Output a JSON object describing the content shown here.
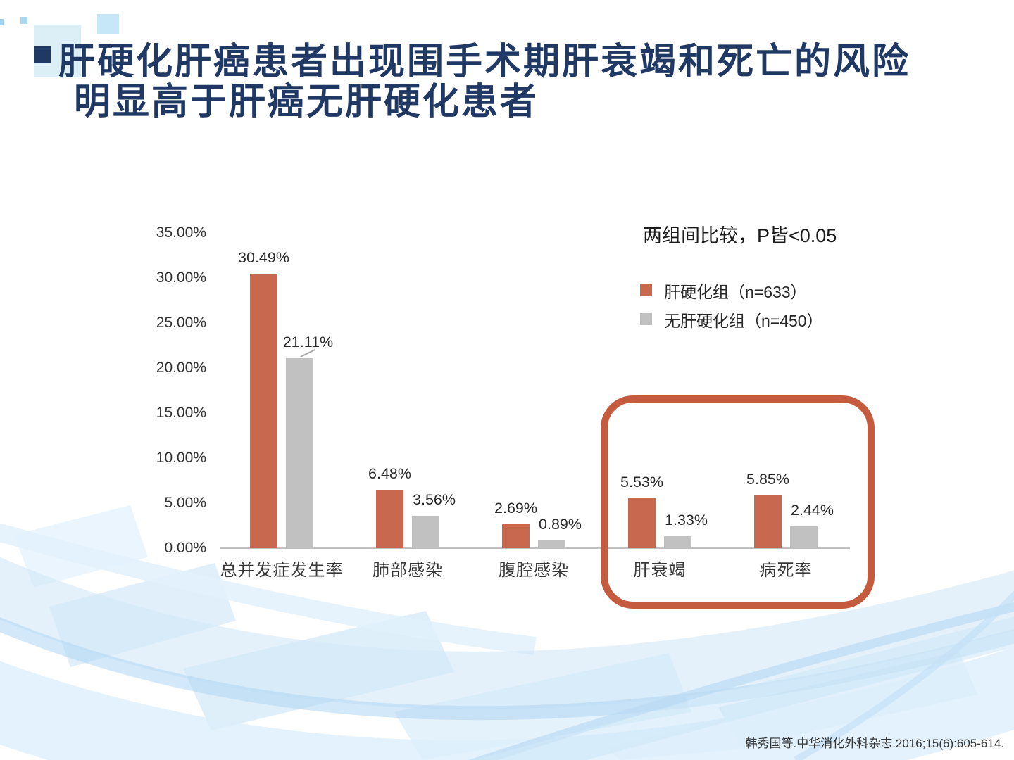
{
  "slide": {
    "title_line1": "肝硬化肝癌患者出现围手术期肝衰竭和死亡的风险",
    "title_line2": "明显高于肝癌无肝硬化患者",
    "citation": "韩秀国等.中华消化外科杂志.2016;15(6):605-614."
  },
  "annotation": {
    "p_value_note": "两组间比较，P皆<0.05"
  },
  "colors": {
    "title_navy": "#1F3864",
    "series_cirrhosis_orange": "#C8684E",
    "series_no_cirrhosis_gray": "#C1C1C1",
    "highlight_box_border": "#C55B3E",
    "axis_line_gray": "#BFBFBF"
  },
  "chart_data": {
    "type": "bar",
    "title": "",
    "xlabel": "",
    "ylabel": "",
    "categories": [
      "总并发症发生率",
      "肺部感染",
      "腹腔感染",
      "肝衰竭",
      "病死率"
    ],
    "series": [
      {
        "name": "肝硬化组（n=633）",
        "color": "#C8684E",
        "values": [
          30.49,
          6.48,
          2.69,
          5.53,
          5.85
        ],
        "labels": [
          "30.49%",
          "6.48%",
          "2.69%",
          "5.53%",
          "5.85%"
        ]
      },
      {
        "name": "无肝硬化组（n=450）",
        "color": "#C1C1C1",
        "values": [
          21.11,
          3.56,
          0.89,
          1.33,
          2.44
        ],
        "labels": [
          "21.11%",
          "3.56%",
          "0.89%",
          "1.33%",
          "2.44%"
        ]
      }
    ],
    "y_axis": {
      "min": 0,
      "max": 35,
      "step": 5,
      "tick_labels": [
        "0.00%",
        "5.00%",
        "10.00%",
        "15.00%",
        "20.00%",
        "25.00%",
        "30.00%",
        "35.00%"
      ]
    },
    "grid": false,
    "legend_position": "right-of-plot-top",
    "highlighted_categories": [
      "肝衰竭",
      "病死率"
    ]
  }
}
